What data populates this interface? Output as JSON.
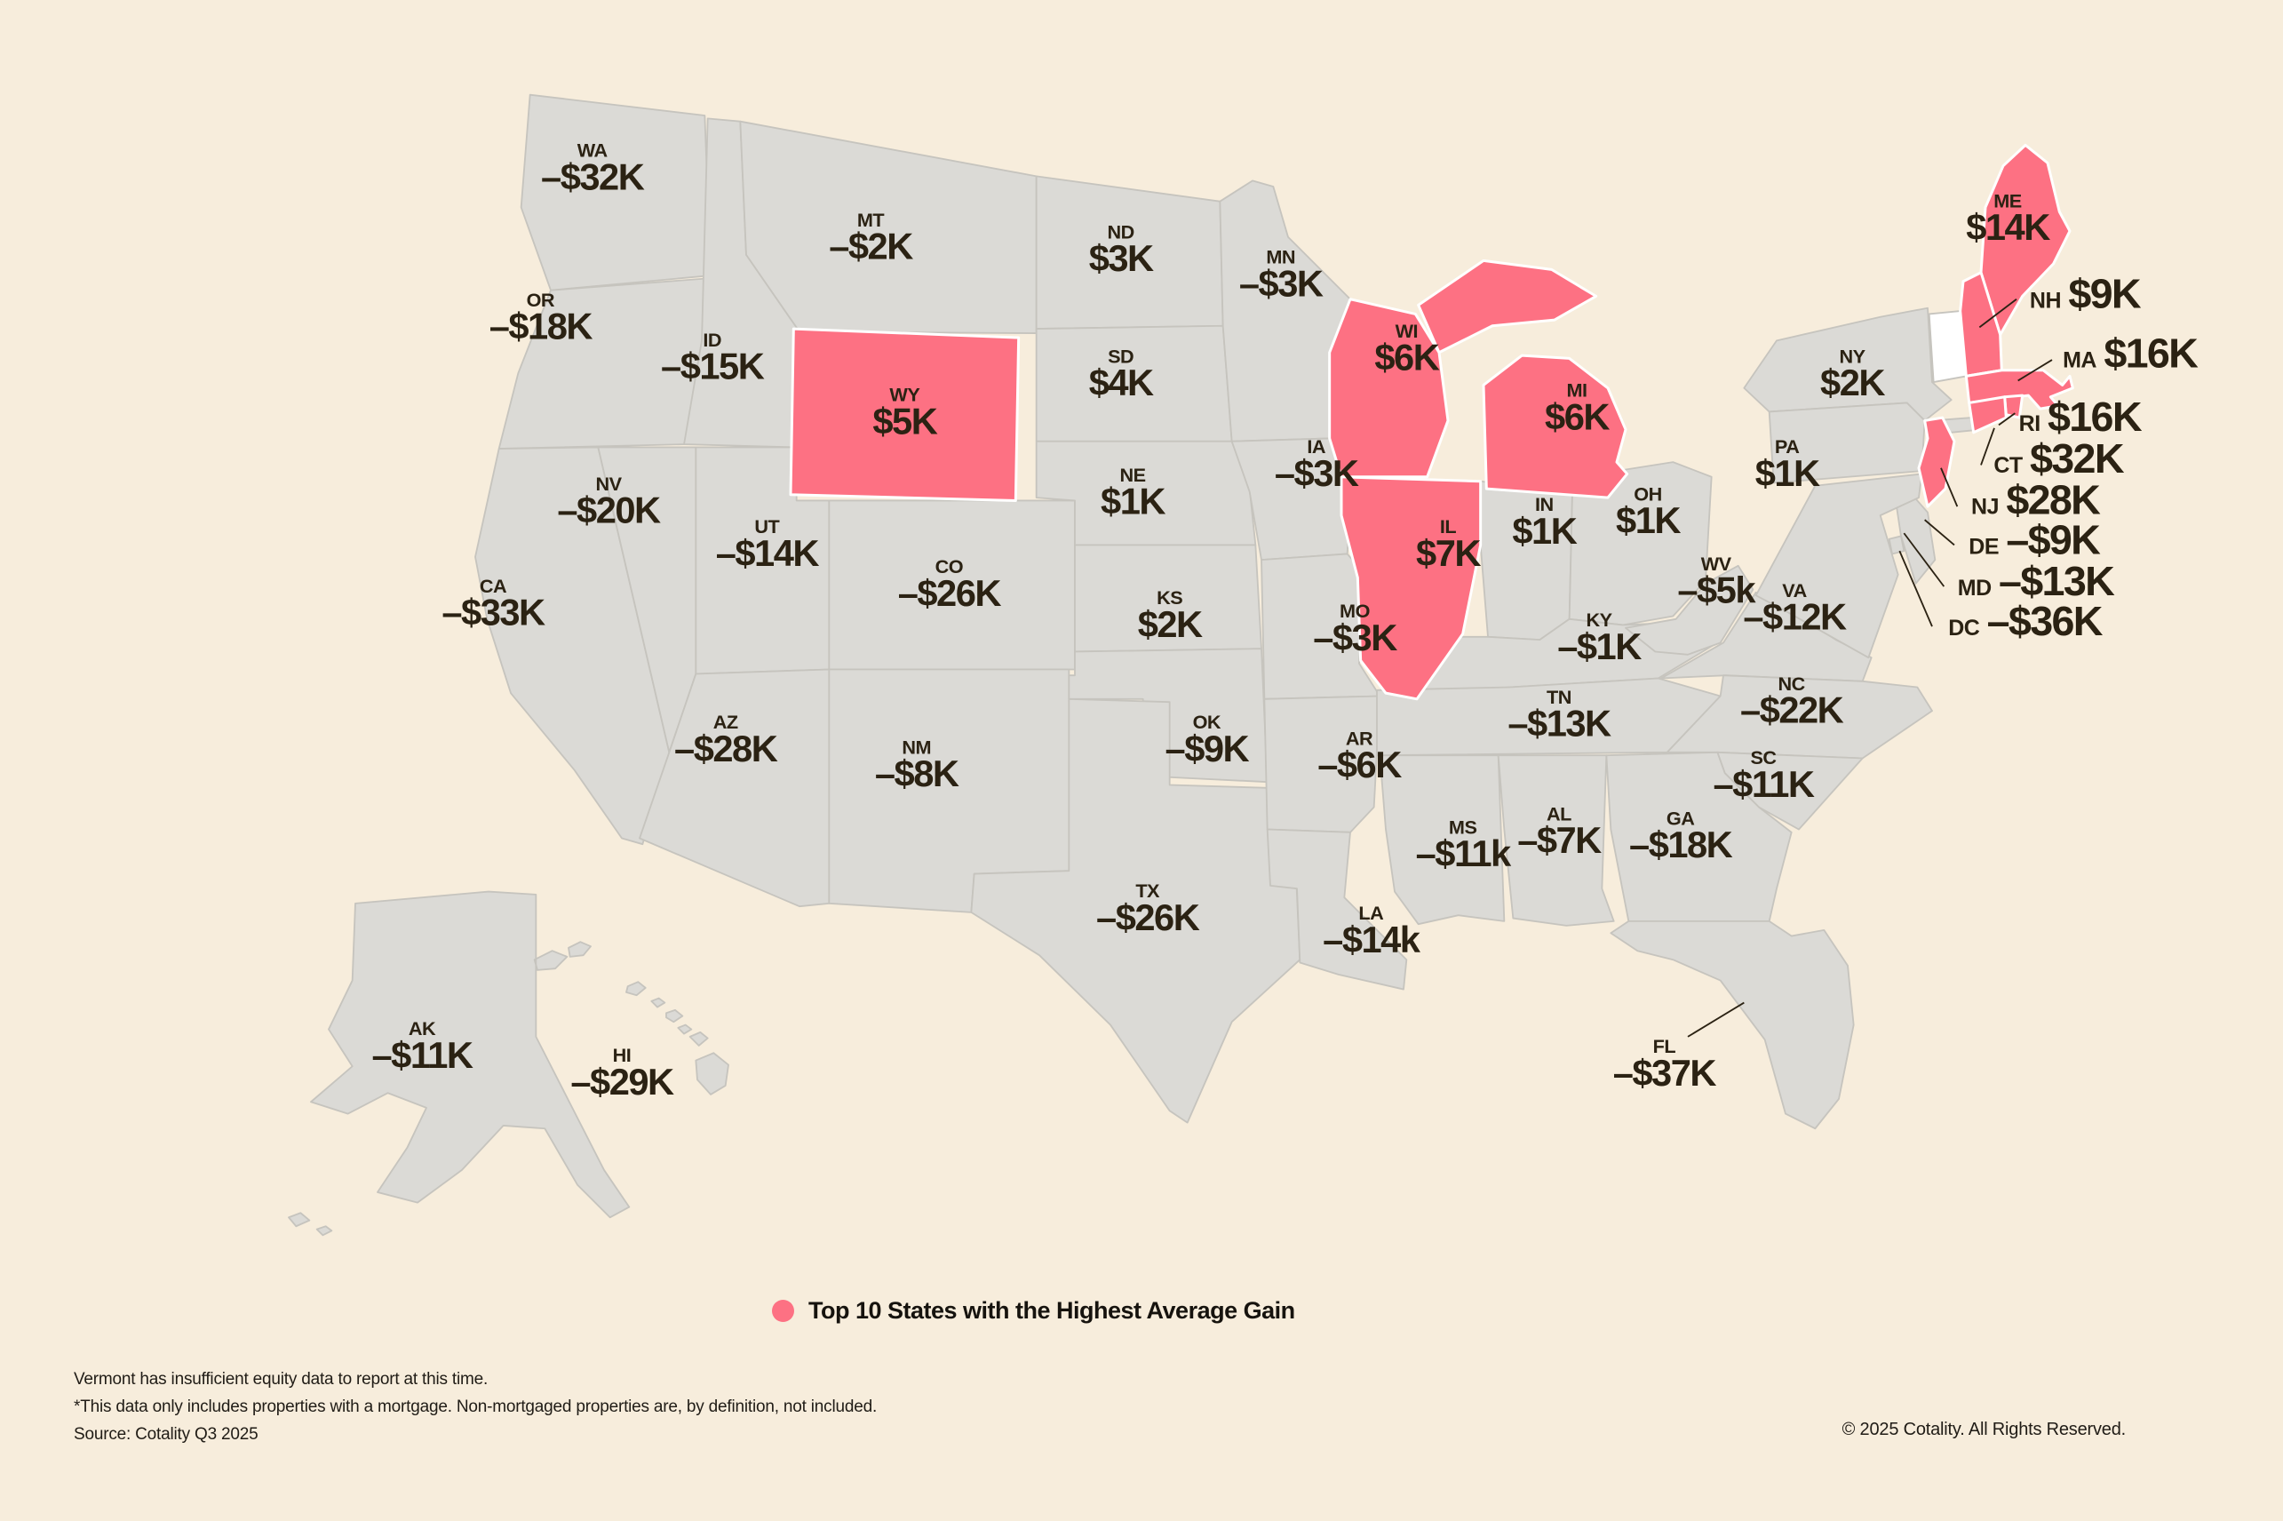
{
  "legend": {
    "label": "Top 10 States with the Highest Average Gain"
  },
  "footnotes": [
    "Vermont has insufficient equity data to report at this time.",
    "*This data only includes properties with a mortgage. Non-mortgaged properties are, by definition, not included.",
    "Source: Cotality Q3 2025"
  ],
  "copyright": "© 2025 Cotality. All Rights Reserved.",
  "colors": {
    "background": "#F7EDDC",
    "state_fill": "#DBDAD6",
    "state_border": "#C6C4BE",
    "highlight": "#FD7183",
    "no_data_fill": "#FFFFFF",
    "text": "#2B2213"
  },
  "chart_data": {
    "type": "heatmap",
    "subtype": "us-state-choropleth",
    "legend": "Top 10 States with the Highest Average Gain",
    "units": "average equity change, USD thousands",
    "no_data_states": [
      "VT"
    ],
    "states": [
      {
        "abbr": "WA",
        "value": "–$32K",
        "value_k": -32,
        "top10": false
      },
      {
        "abbr": "OR",
        "value": "–$18K",
        "value_k": -18,
        "top10": false
      },
      {
        "abbr": "CA",
        "value": "–$33K",
        "value_k": -33,
        "top10": false
      },
      {
        "abbr": "NV",
        "value": "–$20K",
        "value_k": -20,
        "top10": false
      },
      {
        "abbr": "ID",
        "value": "–$15K",
        "value_k": -15,
        "top10": false
      },
      {
        "abbr": "MT",
        "value": "–$2K",
        "value_k": -2,
        "top10": false
      },
      {
        "abbr": "WY",
        "value": "$5K",
        "value_k": 5,
        "top10": true
      },
      {
        "abbr": "UT",
        "value": "–$14K",
        "value_k": -14,
        "top10": false
      },
      {
        "abbr": "CO",
        "value": "–$26K",
        "value_k": -26,
        "top10": false
      },
      {
        "abbr": "AZ",
        "value": "–$28K",
        "value_k": -28,
        "top10": false
      },
      {
        "abbr": "NM",
        "value": "–$8K",
        "value_k": -8,
        "top10": false
      },
      {
        "abbr": "ND",
        "value": "$3K",
        "value_k": 3,
        "top10": false
      },
      {
        "abbr": "SD",
        "value": "$4K",
        "value_k": 4,
        "top10": false
      },
      {
        "abbr": "NE",
        "value": "$1K",
        "value_k": 1,
        "top10": false
      },
      {
        "abbr": "KS",
        "value": "$2K",
        "value_k": 2,
        "top10": false
      },
      {
        "abbr": "OK",
        "value": "–$9K",
        "value_k": -9,
        "top10": false
      },
      {
        "abbr": "TX",
        "value": "–$26K",
        "value_k": -26,
        "top10": false
      },
      {
        "abbr": "MN",
        "value": "–$3K",
        "value_k": -3,
        "top10": false
      },
      {
        "abbr": "IA",
        "value": "–$3K",
        "value_k": -3,
        "top10": false
      },
      {
        "abbr": "MO",
        "value": "–$3K",
        "value_k": -3,
        "top10": false
      },
      {
        "abbr": "AR",
        "value": "–$6K",
        "value_k": -6,
        "top10": false
      },
      {
        "abbr": "LA",
        "value": "–$14k",
        "value_k": -14,
        "top10": false
      },
      {
        "abbr": "WI",
        "value": "$6K",
        "value_k": 6,
        "top10": true
      },
      {
        "abbr": "IL",
        "value": "$7K",
        "value_k": 7,
        "top10": true
      },
      {
        "abbr": "MS",
        "value": "–$11k",
        "value_k": -11,
        "top10": false
      },
      {
        "abbr": "MI",
        "value": "$6K",
        "value_k": 6,
        "top10": true
      },
      {
        "abbr": "IN",
        "value": "$1K",
        "value_k": 1,
        "top10": false
      },
      {
        "abbr": "OH",
        "value": "$1K",
        "value_k": 1,
        "top10": false
      },
      {
        "abbr": "KY",
        "value": "–$1K",
        "value_k": -1,
        "top10": false
      },
      {
        "abbr": "TN",
        "value": "–$13K",
        "value_k": -13,
        "top10": false
      },
      {
        "abbr": "WV",
        "value": "–$5k",
        "value_k": -5,
        "top10": false
      },
      {
        "abbr": "VA",
        "value": "–$12K",
        "value_k": -12,
        "top10": false
      },
      {
        "abbr": "NC",
        "value": "–$22K",
        "value_k": -22,
        "top10": false
      },
      {
        "abbr": "SC",
        "value": "–$11K",
        "value_k": -11,
        "top10": false
      },
      {
        "abbr": "GA",
        "value": "–$18K",
        "value_k": -18,
        "top10": false
      },
      {
        "abbr": "AL",
        "value": "–$7K",
        "value_k": -7,
        "top10": false
      },
      {
        "abbr": "FL",
        "value": "–$37K",
        "value_k": -37,
        "top10": false
      },
      {
        "abbr": "NY",
        "value": "$2K",
        "value_k": 2,
        "top10": false
      },
      {
        "abbr": "PA",
        "value": "$1K",
        "value_k": 1,
        "top10": false
      },
      {
        "abbr": "VT",
        "value": null,
        "value_k": null,
        "top10": false,
        "no_data": true
      },
      {
        "abbr": "ME",
        "value": "$14K",
        "value_k": 14,
        "top10": true
      },
      {
        "abbr": "NH",
        "value": "$9K",
        "value_k": 9,
        "top10": true
      },
      {
        "abbr": "MA",
        "value": "$16K",
        "value_k": 16,
        "top10": true
      },
      {
        "abbr": "RI",
        "value": "$16K",
        "value_k": 16,
        "top10": true
      },
      {
        "abbr": "CT",
        "value": "$32K",
        "value_k": 32,
        "top10": true
      },
      {
        "abbr": "NJ",
        "value": "$28K",
        "value_k": 28,
        "top10": true
      },
      {
        "abbr": "DE",
        "value": "–$9K",
        "value_k": -9,
        "top10": false
      },
      {
        "abbr": "MD",
        "value": "–$13K",
        "value_k": -13,
        "top10": false
      },
      {
        "abbr": "DC",
        "value": "–$36K",
        "value_k": -36,
        "top10": false
      },
      {
        "abbr": "AK",
        "value": "–$11K",
        "value_k": -11,
        "top10": false
      },
      {
        "abbr": "HI",
        "value": "–$29K",
        "value_k": -29,
        "top10": false
      }
    ]
  }
}
